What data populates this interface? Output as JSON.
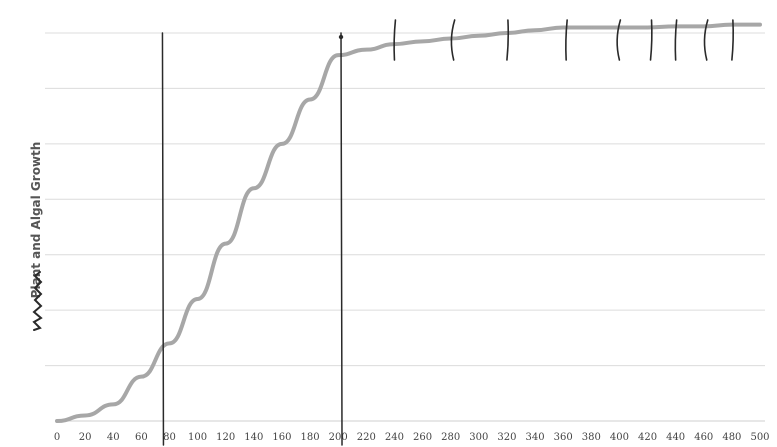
{
  "chart_data": {
    "type": "line",
    "title": "",
    "xlabel": "",
    "ylabel": "Plant and Algal Growth",
    "xlim": [
      0,
      500
    ],
    "ylim": [
      0,
      7
    ],
    "grid": true,
    "grid_axis": "y",
    "x_tick_labels": [
      "0",
      "20",
      "40",
      "60",
      "80",
      "100",
      "120",
      "140",
      "160",
      "180",
      "200",
      "220",
      "240",
      "260",
      "280",
      "300",
      "320",
      "340",
      "360",
      "380",
      "400",
      "420",
      "440",
      "460",
      "480",
      "500"
    ],
    "series": [
      {
        "x": [
          0,
          20,
          40,
          60,
          80,
          100,
          120,
          140,
          160,
          180,
          200,
          220,
          240,
          260,
          280,
          300,
          320,
          340,
          360,
          380,
          400,
          420,
          440,
          460,
          480,
          500
        ],
        "y": [
          0.0,
          0.1,
          0.3,
          0.8,
          1.4,
          2.2,
          3.2,
          4.2,
          5.0,
          5.8,
          6.6,
          6.7,
          6.8,
          6.85,
          6.9,
          6.95,
          7.0,
          7.05,
          7.1,
          7.1,
          7.1,
          7.1,
          7.12,
          7.12,
          7.15,
          7.15
        ]
      }
    ],
    "annotations": {
      "vertical_lines_at_x": [
        75,
        202
      ],
      "tick_marks_at_x": [
        240,
        280,
        320,
        360,
        400,
        420,
        440,
        460,
        480
      ]
    }
  }
}
